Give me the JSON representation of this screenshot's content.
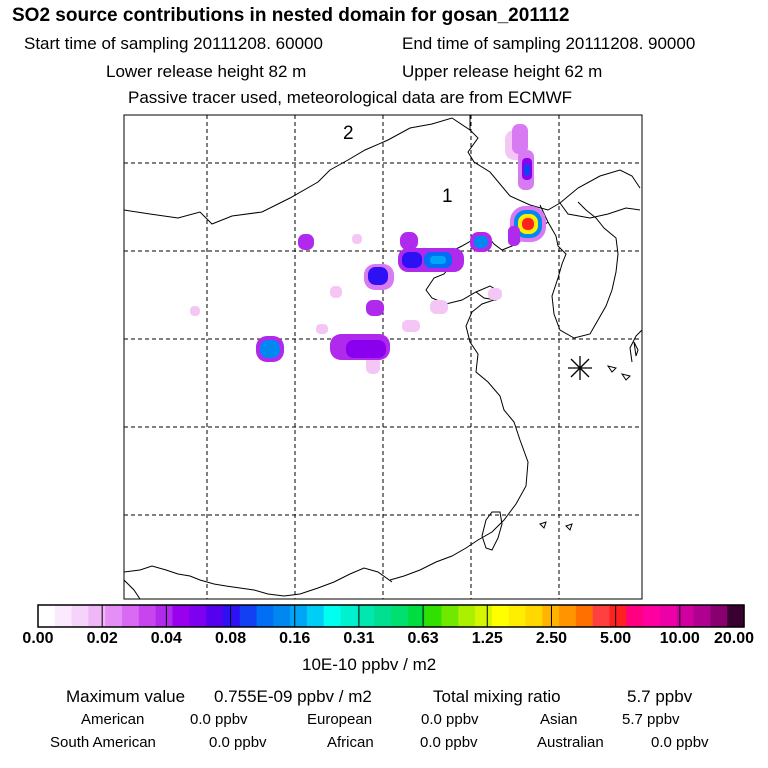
{
  "header": {
    "title": "SO2 source contributions in nested domain for gosan_201112",
    "start_label": "Start time of sampling 20111208. 60000",
    "end_label": "End time of sampling 20111208. 90000",
    "lower_release": "Lower release height   82 m",
    "upper_release": "Upper release height   62 m",
    "tracer_note": "Passive tracer used, meteorological data are from ECMWF"
  },
  "map": {
    "region_labels": [
      "2",
      "1"
    ],
    "receptor_marker": "asterisk-marker"
  },
  "chart_data": {
    "type": "heatmap",
    "title": "SO2 source contributions in nested domain for gosan_201112",
    "colorbar_unit": "10E-10 ppbv / m2",
    "colorbar_ticks": [
      "0.00",
      "0.02",
      "0.04",
      "0.08",
      "0.16",
      "0.31",
      "0.63",
      "1.25",
      "2.50",
      "5.00",
      "10.00",
      "20.00"
    ],
    "colorbar_colors": [
      "#ffffff",
      "#fbeafd",
      "#f6d3fb",
      "#efb7f8",
      "#e58ef5",
      "#d96af2",
      "#c744ef",
      "#b02aed",
      "#9900ee",
      "#7d00f0",
      "#5500ee",
      "#2e10f5",
      "#1440f3",
      "#006ef5",
      "#0088f0",
      "#00a6f5",
      "#00cff5",
      "#00ffee",
      "#00f0d0",
      "#00e8b0",
      "#00e090",
      "#00e070",
      "#00dd40",
      "#30e000",
      "#70e800",
      "#aaf000",
      "#d6f500",
      "#ffff00",
      "#ffee00",
      "#ffd800",
      "#ffb400",
      "#ff9400",
      "#ff7000",
      "#ff4040",
      "#ff2020",
      "#ff0080",
      "#ff00a0",
      "#ee00a8",
      "#d000a0",
      "#b00090",
      "#880070",
      "#3a0030"
    ]
  },
  "stats": {
    "max_label": "Maximum value",
    "max_value": "0.755E-09 ppbv / m2",
    "total_label": "Total mixing ratio",
    "total_value": "5.7 ppbv",
    "regions": [
      {
        "name": "American",
        "value": "0.0 ppbv"
      },
      {
        "name": "European",
        "value": "0.0 ppbv"
      },
      {
        "name": "Asian",
        "value": "5.7 ppbv"
      },
      {
        "name": "South American",
        "value": "0.0 ppbv"
      },
      {
        "name": "African",
        "value": "0.0 ppbv"
      },
      {
        "name": "Australian",
        "value": "0.0 ppbv"
      }
    ]
  }
}
